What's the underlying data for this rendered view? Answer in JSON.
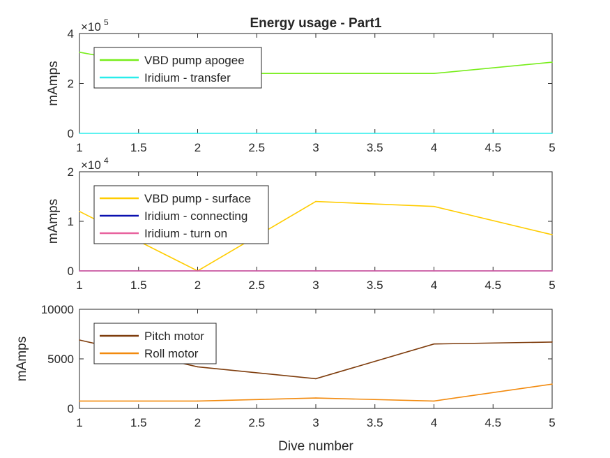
{
  "figure": {
    "title": "Energy usage - Part1",
    "xlabel": "Dive number"
  },
  "chart_data": [
    {
      "type": "line",
      "x": [
        1,
        2,
        3,
        4,
        5
      ],
      "xticks": [
        "1",
        "1.5",
        "2",
        "2.5",
        "3",
        "3.5",
        "4",
        "4.5",
        "5"
      ],
      "xtick_values": [
        1,
        1.5,
        2,
        2.5,
        3,
        3.5,
        4,
        4.5,
        5
      ],
      "xlim": [
        1,
        5
      ],
      "ylim": [
        0,
        4
      ],
      "yticks": [
        "0",
        "2",
        "4"
      ],
      "ytick_values": [
        0,
        2,
        4
      ],
      "exponent": "×10",
      "exponent_power": "5",
      "ylabel": "mAmps",
      "legend": "top-left",
      "series": [
        {
          "name": "VBD pump apogee",
          "color": "#77ED1A",
          "values": [
            3.25,
            2.4,
            2.4,
            2.4,
            2.85
          ]
        },
        {
          "name": "Iridium - transfer",
          "color": "#29EDEB",
          "values": [
            0,
            0,
            0,
            0,
            0
          ]
        }
      ]
    },
    {
      "type": "line",
      "x": [
        1,
        2,
        3,
        4,
        5
      ],
      "xticks": [
        "1",
        "1.5",
        "2",
        "2.5",
        "3",
        "3.5",
        "4",
        "4.5",
        "5"
      ],
      "xtick_values": [
        1,
        1.5,
        2,
        2.5,
        3,
        3.5,
        4,
        4.5,
        5
      ],
      "xlim": [
        1,
        5
      ],
      "ylim": [
        0,
        2
      ],
      "yticks": [
        "0",
        "1",
        "2"
      ],
      "ytick_values": [
        0,
        1,
        2
      ],
      "exponent": "×10",
      "exponent_power": "4",
      "ylabel": "mAmps",
      "legend": "top-left",
      "series": [
        {
          "name": "VBD pump - surface",
          "color": "#FFCC00",
          "values": [
            1.2,
            0,
            1.4,
            1.3,
            0.73
          ]
        },
        {
          "name": "Iridium - connecting",
          "color": "#0A10B0",
          "values": [
            0,
            0,
            0,
            0,
            0
          ]
        },
        {
          "name": "Iridium - turn on",
          "color": "#E8629E",
          "values": [
            0,
            0,
            0,
            0,
            0
          ]
        }
      ]
    },
    {
      "type": "line",
      "x": [
        1,
        2,
        3,
        4,
        5
      ],
      "xticks": [
        "1",
        "1.5",
        "2",
        "2.5",
        "3",
        "3.5",
        "4",
        "4.5",
        "5"
      ],
      "xtick_values": [
        1,
        1.5,
        2,
        2.5,
        3,
        3.5,
        4,
        4.5,
        5
      ],
      "xlim": [
        1,
        5
      ],
      "ylim": [
        0,
        10000
      ],
      "yticks": [
        "0",
        "5000",
        "10000"
      ],
      "ytick_values": [
        0,
        5000,
        10000
      ],
      "exponent": "",
      "exponent_power": "",
      "ylabel": "mAmps",
      "legend": "top-left",
      "series": [
        {
          "name": "Pitch motor",
          "color": "#7E3C0C",
          "values": [
            6900,
            4200,
            3000,
            6500,
            6700
          ]
        },
        {
          "name": "Roll motor",
          "color": "#F28A0E",
          "values": [
            750,
            750,
            1050,
            750,
            2450
          ]
        }
      ]
    }
  ]
}
